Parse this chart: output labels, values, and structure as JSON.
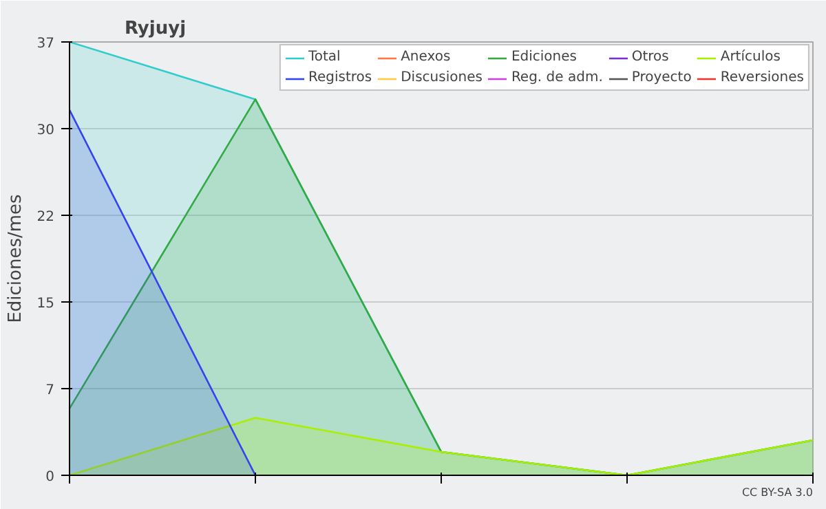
{
  "chart_data": {
    "type": "area",
    "title": "Ryjuyj",
    "ylabel": "Ediciones/mes",
    "categories": [
      null,
      null,
      null,
      null,
      null
    ],
    "ylim": [
      0,
      37
    ],
    "yticks": [
      0,
      {
        "value": 7.4,
        "label": "7"
      },
      {
        "value": 14.8,
        "label": "15"
      },
      {
        "value": 22.2,
        "label": "22"
      },
      {
        "value": 29.6,
        "label": "30"
      },
      37
    ],
    "grid": "y",
    "legend": "top right",
    "annotations": [
      "CC BY-SA 3.0"
    ],
    "series": [
      {
        "name": "Total",
        "color": "#33cccc",
        "values": [
          37,
          32.1,
          2,
          0,
          3
        ]
      },
      {
        "name": "Anexos",
        "color": "#ff7744",
        "values": [
          null,
          null,
          null,
          null,
          null
        ]
      },
      {
        "name": "Ediciones",
        "color": "#33aa44",
        "values": [
          5.7,
          32.1,
          2,
          0,
          3
        ]
      },
      {
        "name": "Otros",
        "color": "#7733cc",
        "values": [
          null,
          null,
          null,
          null,
          null
        ]
      },
      {
        "name": "Artículos",
        "color": "#aaee00",
        "values": [
          0,
          4.9,
          2,
          0,
          3
        ]
      },
      {
        "name": "Registros",
        "color": "#3344ee",
        "values": [
          31.2,
          0,
          null,
          null,
          null
        ]
      },
      {
        "name": "Discusiones",
        "color": "#ffcc44",
        "values": [
          null,
          null,
          null,
          null,
          null
        ]
      },
      {
        "name": "Reg. de adm.",
        "color": "#cc44dd",
        "values": [
          null,
          null,
          null,
          null,
          null
        ]
      },
      {
        "name": "Proyecto",
        "color": "#555555",
        "values": [
          null,
          null,
          null,
          null,
          null
        ]
      },
      {
        "name": "Reversiones",
        "color": "#ee3333",
        "values": [
          null,
          null,
          null,
          null,
          null
        ]
      }
    ]
  }
}
